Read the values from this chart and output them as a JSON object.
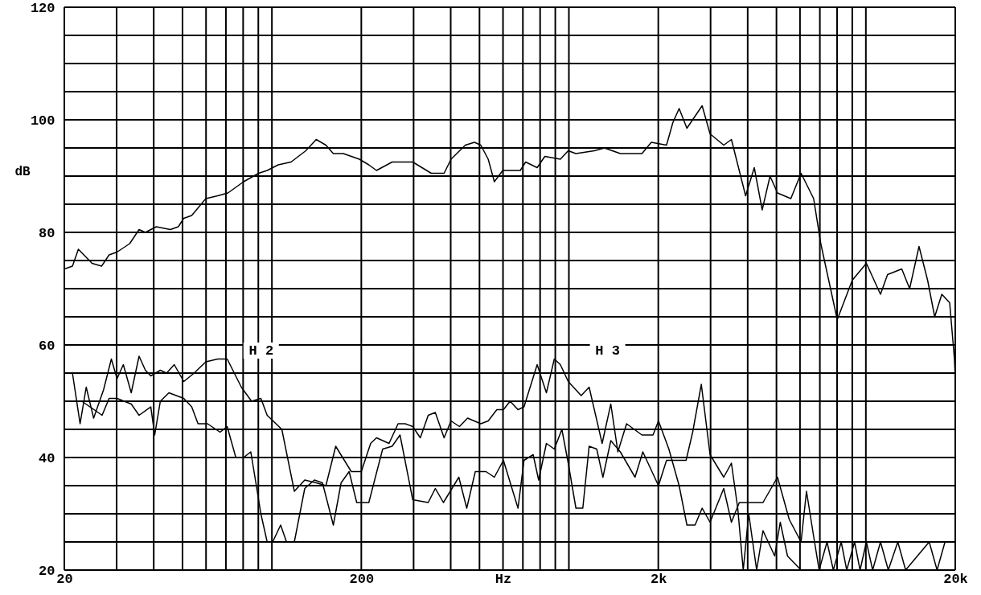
{
  "chart_data": {
    "type": "line",
    "ylabel": "dB",
    "log": "x",
    "grid": true,
    "line_style": "solid",
    "xlim": [
      20,
      20000
    ],
    "ylim": [
      20,
      120
    ],
    "xticks": [
      20,
      {
        "value": 30,
        "label": null
      },
      {
        "value": 40,
        "label": null
      },
      {
        "value": 50,
        "label": null
      },
      {
        "value": 60,
        "label": null
      },
      {
        "value": 70,
        "label": null
      },
      {
        "value": 80,
        "label": null
      },
      {
        "value": 90,
        "label": null
      },
      {
        "value": 100,
        "label": null
      },
      200,
      {
        "value": 300,
        "label": null
      },
      {
        "value": 400,
        "label": null
      },
      {
        "value": 500,
        "label": null
      },
      {
        "value": 600,
        "label": "Hz"
      },
      {
        "value": 700,
        "label": null
      },
      {
        "value": 800,
        "label": null
      },
      {
        "value": 900,
        "label": null
      },
      {
        "value": 1000,
        "label": null
      },
      {
        "value": 2000,
        "label": "2k"
      },
      {
        "value": 3000,
        "label": null
      },
      {
        "value": 4000,
        "label": null
      },
      {
        "value": 5000,
        "label": null
      },
      {
        "value": 6000,
        "label": null
      },
      {
        "value": 7000,
        "label": null
      },
      {
        "value": 8000,
        "label": null
      },
      {
        "value": 9000,
        "label": null
      },
      {
        "value": 10000,
        "label": null
      },
      {
        "value": 20000,
        "label": "20k"
      }
    ],
    "yticks": [
      20,
      {
        "value": 25,
        "label": null
      },
      {
        "value": 30,
        "label": null
      },
      {
        "value": 35,
        "label": null
      },
      40,
      {
        "value": 45,
        "label": null
      },
      {
        "value": 50,
        "label": null
      },
      {
        "value": 55,
        "label": null
      },
      60,
      {
        "value": 65,
        "label": null
      },
      {
        "value": 70,
        "label": null
      },
      {
        "value": 75,
        "label": null
      },
      80,
      {
        "value": 85,
        "label": null
      },
      {
        "value": 90,
        "label": null
      },
      {
        "value": 95,
        "label": null
      },
      100,
      {
        "value": 105,
        "label": null
      },
      {
        "value": 110,
        "label": null
      },
      {
        "value": 115,
        "label": null
      },
      120
    ],
    "annotations": [
      {
        "text": "H 2",
        "x": 92,
        "y": 59
      },
      {
        "text": "H 3",
        "x": 1350,
        "y": 59
      }
    ],
    "series": [
      {
        "color": "#000000",
        "x": [
          20,
          21.3,
          22.3,
          24.8,
          26.7,
          28.3,
          30.1,
          33.2,
          35.7,
          37.5,
          40.8,
          45.5,
          48.4,
          50.5,
          53.7,
          59.9,
          65.7,
          71.1,
          80.3,
          90.2,
          96.4,
          105,
          116,
          130,
          141,
          152,
          161,
          174,
          197,
          212,
          225,
          254,
          298,
          344,
          380,
          401,
          448,
          481,
          505,
          535,
          561,
          599,
          686,
          715,
          782,
          830,
          936,
          995,
          1056,
          1218,
          1318,
          1490,
          1762,
          1895,
          2132,
          2239,
          2351,
          2497,
          2810,
          2988,
          3322,
          3526,
          3936,
          4210,
          4476,
          4757,
          5040,
          5590,
          6050,
          6670,
          7050,
          8010,
          9000,
          10040,
          11200,
          11830,
          13210,
          14040,
          15100,
          16140,
          17050,
          18020,
          19150,
          19870,
          20000
        ],
        "values": [
          73.5,
          74,
          77,
          74.5,
          74,
          76,
          76.5,
          78,
          80.5,
          80,
          81,
          80.5,
          81,
          82.5,
          83,
          86,
          86.5,
          87,
          89,
          90.5,
          91,
          92,
          92.5,
          94.5,
          96.5,
          95.5,
          94,
          94,
          93,
          92,
          91,
          92.5,
          92.5,
          90.5,
          90.5,
          93,
          95.5,
          96,
          95.5,
          93,
          89,
          91,
          91,
          92.5,
          91.5,
          93.5,
          93,
          94.5,
          94,
          94.5,
          95,
          94,
          94,
          96,
          95.5,
          99.5,
          102,
          98.5,
          102.5,
          97.5,
          95.5,
          96.5,
          86.5,
          91.5,
          84,
          90,
          87,
          86,
          90.5,
          86,
          78,
          64.5,
          71.5,
          74.5,
          69,
          72.5,
          73.5,
          70,
          77.5,
          71.5,
          65,
          69,
          67.5,
          57.5,
          54
        ]
      },
      {
        "color": "#000000",
        "x": [
          20,
          21.3,
          22.6,
          23.7,
          25.1,
          27.1,
          28.8,
          30.1,
          31.6,
          33.6,
          35.7,
          37.5,
          39.1,
          42.1,
          44.2,
          46.9,
          50.5,
          54.7,
          59.9,
          65.7,
          70.7,
          78.9,
          85.4,
          91.8,
          96.4,
          108,
          119,
          129,
          141,
          152,
          164,
          185,
          200,
          215,
          225,
          248,
          266,
          281,
          298,
          316,
          336,
          355,
          380,
          401,
          428,
          456,
          505,
          535,
          572,
          602,
          634,
          674,
          706,
          782,
          840,
          893,
          936,
          995,
          1100,
          1170,
          1294,
          1384,
          1462,
          1564,
          1762,
          1920,
          2003,
          2171,
          2351,
          2497,
          2660,
          2810,
          2988,
          3322,
          3526,
          3748,
          4504,
          5040,
          5520,
          6050,
          6310,
          6670,
          6960,
          7400,
          7770,
          8260,
          8620,
          9160,
          9560,
          10040,
          10540,
          11200,
          11900,
          12810,
          13610,
          16340,
          17370,
          18470,
          20000
        ],
        "values": [
          55,
          55,
          46,
          52.5,
          47,
          52,
          57.5,
          54,
          56.5,
          51.5,
          58,
          55.5,
          54.5,
          55.5,
          55,
          56.5,
          53.5,
          55,
          57,
          57.5,
          57.5,
          52.5,
          50,
          50.5,
          47.5,
          45,
          34,
          36,
          35.5,
          35,
          42,
          37.5,
          37.5,
          42.5,
          43.5,
          42.5,
          46,
          46,
          45.5,
          43.5,
          47.5,
          48,
          43.5,
          46.5,
          45.5,
          47,
          46,
          46.5,
          48.5,
          48.5,
          50,
          48.5,
          49,
          56.5,
          51.5,
          57.5,
          56.5,
          53.5,
          51,
          52.5,
          42.5,
          49.5,
          41,
          46,
          44,
          44,
          46.5,
          41.5,
          35,
          28,
          28,
          31,
          28.5,
          34.5,
          28.5,
          32,
          32,
          36.5,
          29,
          25,
          34,
          26,
          20,
          25,
          20,
          25,
          20,
          25,
          20,
          25,
          20,
          25,
          20,
          25,
          20,
          25,
          20,
          25,
          25
        ]
      },
      {
        "color": "#000000",
        "x": [
          20,
          22.9,
          25.2,
          26.8,
          28.3,
          30.1,
          33.6,
          35.7,
          39.1,
          40.3,
          42.1,
          45,
          50.5,
          53.7,
          56.4,
          60.7,
          66.9,
          70.7,
          75.6,
          80.3,
          84.9,
          88,
          91.8,
          96.4,
          100.6,
          107,
          112,
          119,
          129,
          139,
          148,
          161,
          171,
          182,
          193,
          212,
          236,
          254,
          270,
          298,
          336,
          355,
          378,
          426,
          453,
          484,
          526,
          561,
          602,
          674,
          706,
          758,
          791,
          840,
          893,
          947,
          995,
          1056,
          1114,
          1170,
          1241,
          1302,
          1384,
          1490,
          1670,
          1774,
          2003,
          2132,
          2481,
          2611,
          2792,
          2988,
          3322,
          3526,
          3703,
          3864,
          4033,
          4288,
          4504,
          4932,
          5149,
          5447,
          6050
        ],
        "values": [
          50,
          50,
          48.5,
          47.5,
          50.5,
          50.5,
          49.5,
          47.5,
          49,
          44,
          50,
          51.5,
          50.5,
          49,
          46,
          46,
          44.5,
          45.5,
          40,
          40,
          41,
          36,
          30,
          25,
          25,
          28,
          25,
          25,
          34.5,
          36,
          35.5,
          28,
          35.5,
          37.5,
          32,
          32,
          41.5,
          42,
          44,
          32.5,
          32,
          34.5,
          32,
          36.5,
          31,
          37.5,
          37.5,
          36.5,
          39.5,
          31,
          39.5,
          40.5,
          36,
          42.5,
          41.5,
          45,
          39,
          31,
          31,
          42,
          41.5,
          36.5,
          43,
          41,
          36.5,
          41,
          35,
          39.5,
          39.5,
          44.5,
          53,
          40.5,
          36.5,
          39,
          31,
          20,
          30,
          20,
          27,
          22.5,
          28.5,
          22.5,
          20
        ]
      }
    ]
  }
}
